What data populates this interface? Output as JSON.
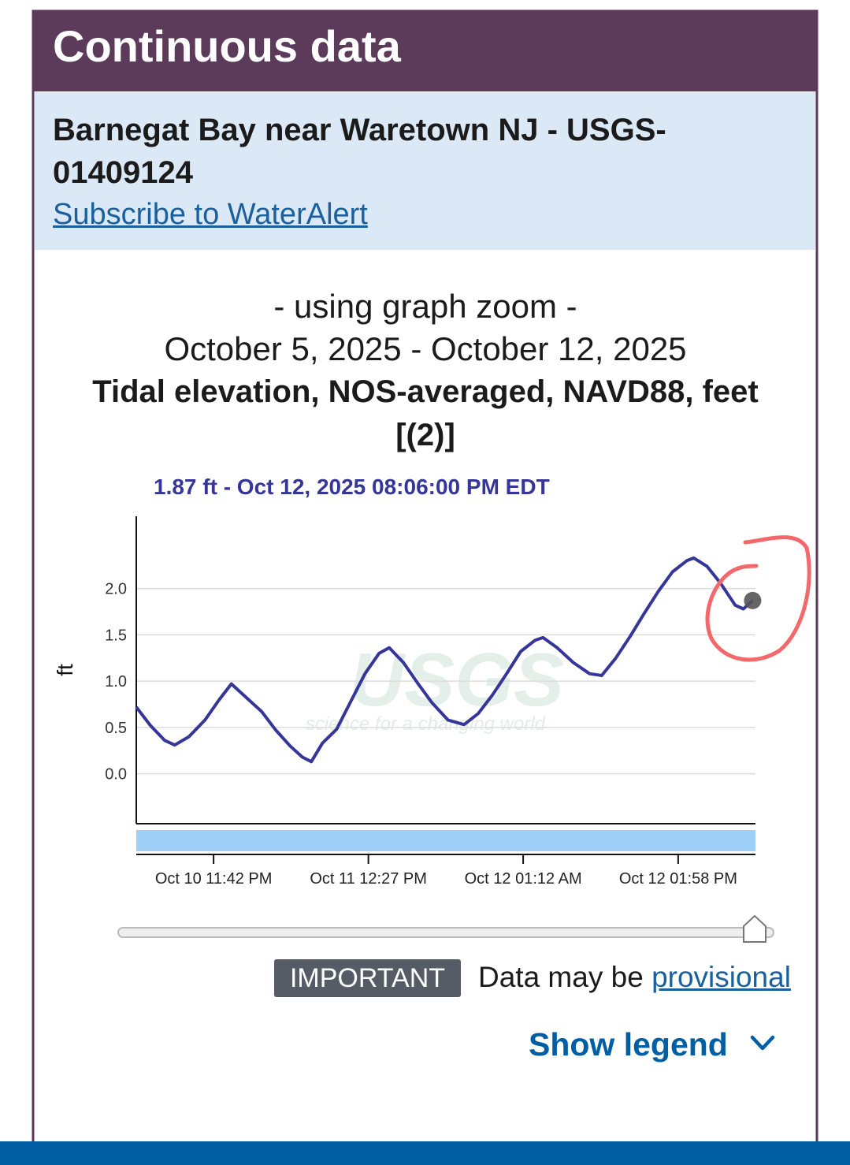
{
  "header": {
    "title": "Continuous data"
  },
  "site": {
    "name": "Barnegat Bay near Waretown NJ - USGS-01409124",
    "subscribe_link": "Subscribe to WaterAlert"
  },
  "graph_heading": {
    "zoom_note": "- using graph zoom -",
    "date_range": "October 5, 2025 - October 12, 2025",
    "parameter": "Tidal elevation, NOS-averaged, NAVD88, feet [(2)]"
  },
  "chart_data": {
    "type": "line",
    "tooltip": "1.87 ft - Oct 12, 2025 08:06:00 PM EDT",
    "y_label": "ft",
    "watermark": {
      "logo": "USGS",
      "tagline": "science for a changing world"
    },
    "color": "#35359a",
    "x": [
      "2025-10-10T17:20",
      "2025-10-10T18:30",
      "2025-10-10T19:40",
      "2025-10-10T20:30",
      "2025-10-10T21:40",
      "2025-10-10T23:00",
      "2025-10-11T00:10",
      "2025-10-11T01:10",
      "2025-10-11T02:20",
      "2025-10-11T03:40",
      "2025-10-11T04:50",
      "2025-10-11T06:00",
      "2025-10-11T07:00",
      "2025-10-11T07:45",
      "2025-10-11T08:40",
      "2025-10-11T09:50",
      "2025-10-11T11:00",
      "2025-10-11T12:10",
      "2025-10-11T13:20",
      "2025-10-11T14:10",
      "2025-10-11T15:20",
      "2025-10-11T16:30",
      "2025-10-11T17:40",
      "2025-10-11T19:00",
      "2025-10-11T20:20",
      "2025-10-11T21:30",
      "2025-10-11T22:40",
      "2025-10-11T23:50",
      "2025-10-12T01:00",
      "2025-10-12T02:10",
      "2025-10-12T02:50",
      "2025-10-12T04:00",
      "2025-10-12T05:20",
      "2025-10-12T06:40",
      "2025-10-12T07:40",
      "2025-10-12T08:50",
      "2025-10-12T10:00",
      "2025-10-12T11:10",
      "2025-10-12T12:20",
      "2025-10-12T13:30",
      "2025-10-12T14:40",
      "2025-10-12T15:15",
      "2025-10-12T16:20",
      "2025-10-12T17:30",
      "2025-10-12T18:40",
      "2025-10-12T19:20",
      "2025-10-12T20:06"
    ],
    "values": [
      0.72,
      0.52,
      0.36,
      0.31,
      0.4,
      0.58,
      0.8,
      0.97,
      0.83,
      0.67,
      0.47,
      0.3,
      0.18,
      0.13,
      0.33,
      0.48,
      0.78,
      1.08,
      1.3,
      1.36,
      1.2,
      0.98,
      0.77,
      0.58,
      0.53,
      0.65,
      0.85,
      1.08,
      1.32,
      1.44,
      1.47,
      1.36,
      1.2,
      1.08,
      1.06,
      1.25,
      1.48,
      1.73,
      1.97,
      2.18,
      2.3,
      2.33,
      2.24,
      2.05,
      1.82,
      1.78,
      1.87
    ],
    "xlim": [
      "2025-10-10T17:20",
      "2025-10-12T20:20"
    ],
    "xticks": [
      {
        "value": "2025-10-10T23:42",
        "label": "Oct 10 11:42 PM"
      },
      {
        "value": "2025-10-11T12:27",
        "label": "Oct 11 12:27 PM"
      },
      {
        "value": "2025-10-12T01:12",
        "label": "Oct 12 01:12 AM"
      },
      {
        "value": "2025-10-12T13:58",
        "label": "Oct 12 01:58 PM"
      }
    ],
    "ylim": [
      -0.54,
      2.78
    ],
    "yticks": [
      {
        "value": 0,
        "label": "0.0"
      },
      0.5,
      {
        "value": 1,
        "label": "1.0"
      },
      1.5,
      {
        "value": 2,
        "label": "2.0"
      }
    ],
    "grid": true
  },
  "notice": {
    "badge": "IMPORTANT",
    "text": "Data may be",
    "link": "provisional"
  },
  "legend_toggle": "Show legend"
}
